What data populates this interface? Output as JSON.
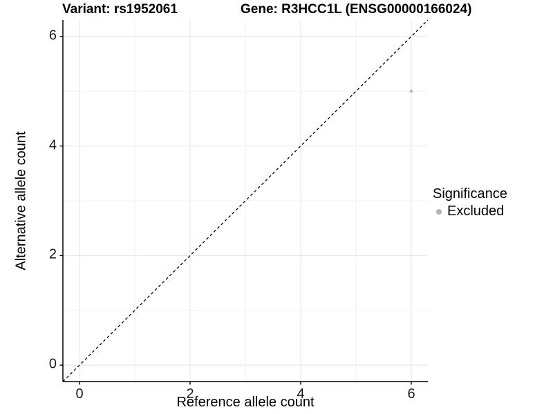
{
  "titles": {
    "variant": "Variant: rs1952061",
    "gene": "Gene: R3HCC1L (ENSG00000166024)"
  },
  "chart_data": {
    "type": "scatter",
    "xlabel": "Reference allele count",
    "ylabel": "Alternative allele count",
    "xlim": [
      -0.3,
      6.3
    ],
    "ylim": [
      -0.3,
      6.3
    ],
    "x_ticks": [
      0,
      2,
      4,
      6
    ],
    "y_ticks": [
      0,
      2,
      4,
      6
    ],
    "x_minor": [
      1,
      3,
      5
    ],
    "y_minor": [
      1,
      3,
      5
    ],
    "grid": true,
    "identity_line": {
      "style": "dashed",
      "from": [
        -0.3,
        -0.3
      ],
      "to": [
        6.3,
        6.3
      ]
    },
    "series": [
      {
        "name": "Excluded",
        "color": "#bdbdbd",
        "point_radius": 2.4,
        "points": [
          [
            6,
            5
          ]
        ]
      }
    ],
    "legend": {
      "title": "Significance",
      "position": "right",
      "entries": [
        {
          "label": "Excluded",
          "color": "#b3b3b3"
        }
      ]
    },
    "colors": {
      "axis_line": "#000000",
      "tick_text": "#1a1a1a",
      "grid_major": "#e8e8e8",
      "grid_minor": "#f2f2f2",
      "dashed_line": "#000000",
      "background": "#ffffff"
    }
  }
}
